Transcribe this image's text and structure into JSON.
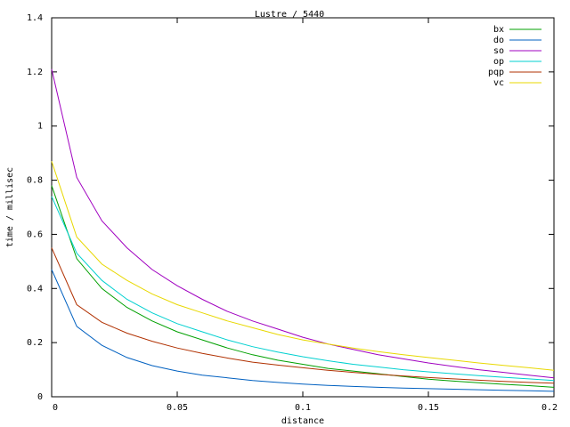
{
  "chart_data": {
    "type": "line",
    "title": "Lustre / 5440",
    "xlabel": "distance",
    "ylabel": "time / millisec",
    "xlim": [
      0,
      0.2
    ],
    "ylim": [
      0,
      1.4
    ],
    "xticks": [
      "0",
      "0.05",
      "0.1",
      "0.15",
      "0.2"
    ],
    "yticks": [
      "0",
      "0.2",
      "0.4",
      "0.6",
      "0.8",
      "1",
      "1.2",
      "1.4"
    ],
    "legend_position": "top-right",
    "grid": false,
    "x": [
      0,
      0.01,
      0.02,
      0.03,
      0.04,
      0.05,
      0.06,
      0.07,
      0.08,
      0.09,
      0.1,
      0.11,
      0.12,
      0.13,
      0.14,
      0.15,
      0.16,
      0.17,
      0.18,
      0.19,
      0.2
    ],
    "series": [
      {
        "name": "bx",
        "color": "#00a000",
        "values": [
          0.78,
          0.51,
          0.4,
          0.33,
          0.28,
          0.24,
          0.21,
          0.18,
          0.155,
          0.135,
          0.12,
          0.105,
          0.095,
          0.085,
          0.075,
          0.065,
          0.058,
          0.052,
          0.046,
          0.041,
          0.035
        ]
      },
      {
        "name": "do",
        "color": "#0060c0",
        "values": [
          0.47,
          0.26,
          0.19,
          0.145,
          0.115,
          0.095,
          0.08,
          0.07,
          0.06,
          0.053,
          0.047,
          0.042,
          0.038,
          0.035,
          0.032,
          0.03,
          0.028,
          0.026,
          0.024,
          0.022,
          0.02
        ]
      },
      {
        "name": "so",
        "color": "#a000c0",
        "values": [
          1.21,
          0.81,
          0.65,
          0.55,
          0.47,
          0.41,
          0.36,
          0.315,
          0.28,
          0.25,
          0.22,
          0.195,
          0.175,
          0.155,
          0.14,
          0.125,
          0.112,
          0.1,
          0.09,
          0.08,
          0.07
        ]
      },
      {
        "name": "op",
        "color": "#00d0d0",
        "values": [
          0.74,
          0.53,
          0.43,
          0.36,
          0.31,
          0.27,
          0.24,
          0.21,
          0.185,
          0.165,
          0.148,
          0.133,
          0.12,
          0.11,
          0.1,
          0.092,
          0.085,
          0.078,
          0.072,
          0.066,
          0.06
        ]
      },
      {
        "name": "pqp",
        "color": "#b03000",
        "values": [
          0.55,
          0.34,
          0.275,
          0.235,
          0.205,
          0.18,
          0.16,
          0.143,
          0.128,
          0.117,
          0.107,
          0.098,
          0.09,
          0.083,
          0.077,
          0.071,
          0.066,
          0.061,
          0.057,
          0.053,
          0.05
        ]
      },
      {
        "name": "vc",
        "color": "#e8d800",
        "values": [
          0.87,
          0.59,
          0.49,
          0.43,
          0.38,
          0.34,
          0.31,
          0.28,
          0.255,
          0.23,
          0.21,
          0.195,
          0.18,
          0.167,
          0.155,
          0.145,
          0.135,
          0.125,
          0.116,
          0.107,
          0.098
        ]
      }
    ]
  }
}
